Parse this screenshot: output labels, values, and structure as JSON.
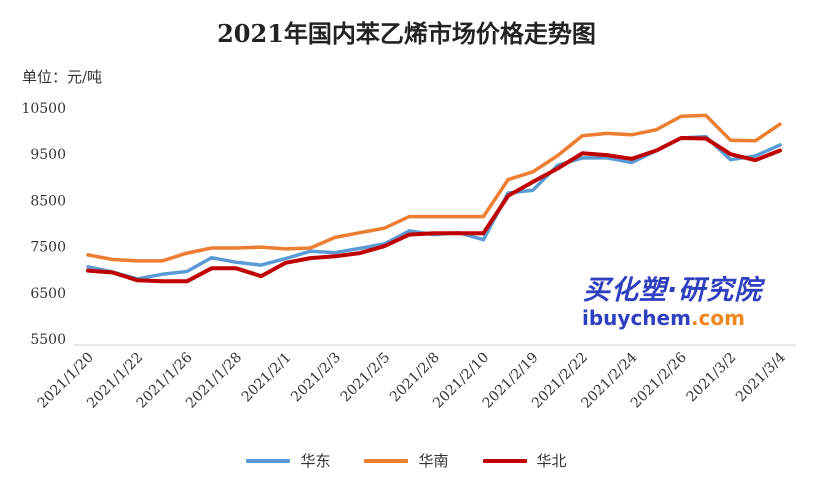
{
  "chart_data": {
    "type": "line",
    "title": "2021年国内苯乙烯市场价格走势图",
    "unit_label": "单位：元/吨",
    "ylim": [
      5500,
      10500
    ],
    "yticks": [
      5500,
      6500,
      7500,
      8500,
      9500,
      10500
    ],
    "grid": false,
    "legend_position": "bottom",
    "x_tick_labels": [
      "2021/1/20",
      "2021/1/22",
      "2021/1/26",
      "2021/1/28",
      "2021/2/1",
      "2021/2/3",
      "2021/2/5",
      "2021/2/8",
      "2021/2/10",
      "2021/2/19",
      "2021/2/22",
      "2021/2/24",
      "2021/2/26",
      "2021/3/2",
      "2021/3/4"
    ],
    "series": [
      {
        "name": "华东",
        "color": "#5b9bd5",
        "values": [
          7060,
          6950,
          6800,
          6900,
          6960,
          7260,
          7160,
          7100,
          7240,
          7400,
          7370,
          7460,
          7560,
          7840,
          7760,
          7800,
          7650,
          8660,
          8720,
          9260,
          9420,
          9420,
          9320,
          9580,
          9850,
          9880,
          9380,
          9460,
          9700
        ]
      },
      {
        "name": "华南",
        "color": "#ed7d31",
        "values": [
          7320,
          7220,
          7190,
          7190,
          7360,
          7470,
          7470,
          7490,
          7450,
          7470,
          7700,
          7800,
          7900,
          8150,
          8150,
          8150,
          8150,
          8950,
          9120,
          9470,
          9900,
          9950,
          9920,
          10030,
          10320,
          10340,
          9800,
          9790,
          10150
        ]
      },
      {
        "name": "华北",
        "color": "#c00000",
        "values": [
          6980,
          6940,
          6770,
          6750,
          6750,
          7030,
          7030,
          6860,
          7150,
          7250,
          7290,
          7360,
          7510,
          7760,
          7790,
          7790,
          7790,
          8600,
          8900,
          9190,
          9520,
          9480,
          9400,
          9580,
          9850,
          9840,
          9500,
          9370,
          9580
        ]
      }
    ]
  },
  "watermark": {
    "brand": "买化塑·研究院",
    "site_part1": "ibuychem",
    "site_part2": ".com"
  }
}
